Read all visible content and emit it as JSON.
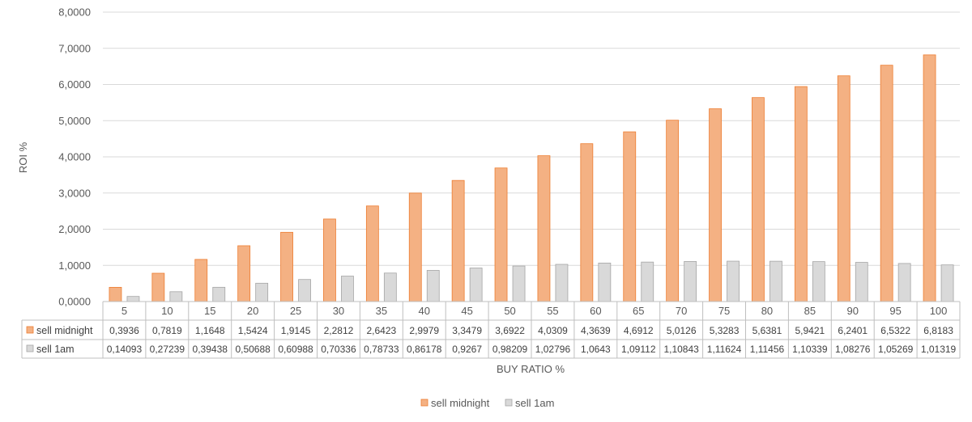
{
  "chart_data": {
    "type": "bar",
    "title": "",
    "xlabel": "BUY RATIO %",
    "ylabel": "ROI %",
    "ylim": [
      0,
      8
    ],
    "yticks": [
      "0,0000",
      "1,0000",
      "2,0000",
      "3,0000",
      "4,0000",
      "5,0000",
      "6,0000",
      "7,0000",
      "8,0000"
    ],
    "categories": [
      "5",
      "10",
      "15",
      "20",
      "25",
      "30",
      "35",
      "40",
      "45",
      "50",
      "55",
      "60",
      "65",
      "70",
      "75",
      "80",
      "85",
      "90",
      "95",
      "100"
    ],
    "grid": true,
    "legend_position": "bottom",
    "data_table": true,
    "series": [
      {
        "name": "sell midnight",
        "color": "#F4B183",
        "stroke": "#ED7D31",
        "values": [
          0.3936,
          0.7819,
          1.1648,
          1.5424,
          1.9145,
          2.2812,
          2.6423,
          2.9979,
          3.3479,
          3.6922,
          4.0309,
          4.3639,
          4.6912,
          5.0126,
          5.3283,
          5.6381,
          5.9421,
          6.2401,
          6.5322,
          6.8183
        ],
        "labels": [
          "0,3936",
          "0,7819",
          "1,1648",
          "1,5424",
          "1,9145",
          "2,2812",
          "2,6423",
          "2,9979",
          "3,3479",
          "3,6922",
          "4,0309",
          "4,3639",
          "4,6912",
          "5,0126",
          "5,3283",
          "5,6381",
          "5,9421",
          "6,2401",
          "6,5322",
          "6,8183"
        ]
      },
      {
        "name": "sell 1am",
        "color": "#D9D9D9",
        "stroke": "#A5A5A5",
        "values": [
          0.14093,
          0.27239,
          0.39438,
          0.50688,
          0.60988,
          0.70336,
          0.78733,
          0.86178,
          0.9267,
          0.98209,
          1.02796,
          1.0643,
          1.09112,
          1.10843,
          1.11624,
          1.11456,
          1.10339,
          1.08276,
          1.05269,
          1.01319
        ],
        "labels": [
          "0,14093",
          "0,27239",
          "0,39438",
          "0,50688",
          "0,60988",
          "0,70336",
          "0,78733",
          "0,86178",
          "0,9267",
          "0,98209",
          "1,02796",
          "1,0643",
          "1,09112",
          "1,10843",
          "1,11624",
          "1,11456",
          "1,10339",
          "1,08276",
          "1,05269",
          "1,01319"
        ]
      }
    ]
  }
}
